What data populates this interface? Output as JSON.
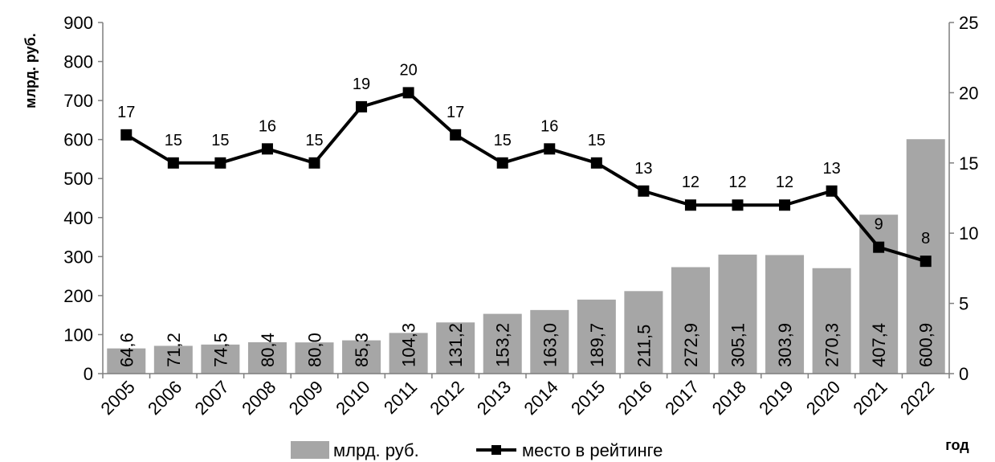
{
  "chart_data": {
    "type": "bar",
    "categories": [
      "2005",
      "2006",
      "2007",
      "2008",
      "2009",
      "2010",
      "2011",
      "2012",
      "2013",
      "2014",
      "2015",
      "2016",
      "2017",
      "2018",
      "2019",
      "2020",
      "2021",
      "2022"
    ],
    "series": [
      {
        "name": "млрд. руб.",
        "type": "bar",
        "axis": "left",
        "color": "#a6a6a6",
        "values": [
          64.6,
          71.2,
          74.5,
          80.4,
          80.0,
          85.3,
          104.3,
          131.2,
          153.2,
          163.0,
          189.7,
          211.5,
          272.9,
          305.1,
          303.9,
          270.3,
          407.4,
          600.9
        ],
        "labels": [
          "64,6",
          "71,2",
          "74,5",
          "80,4",
          "80,0",
          "85,3",
          "104,3",
          "131,2",
          "153,2",
          "163,0",
          "189,7",
          "211,5",
          "272,9",
          "305,1",
          "303,9",
          "270,3",
          "407,4",
          "600,9"
        ]
      },
      {
        "name": "место в рейтинге",
        "type": "line",
        "axis": "right",
        "color": "#000000",
        "marker": "square",
        "values": [
          17,
          15,
          15,
          16,
          15,
          19,
          20,
          17,
          15,
          16,
          15,
          13,
          12,
          12,
          12,
          13,
          9,
          8
        ],
        "labels": [
          "17",
          "15",
          "15",
          "16",
          "15",
          "19",
          "20",
          "17",
          "15",
          "16",
          "15",
          "13",
          "12",
          "12",
          "12",
          "13",
          "9",
          "8"
        ]
      }
    ],
    "xlabel": "год",
    "ylabel": "млрд. руб.",
    "ylim": [
      0,
      900
    ],
    "y2lim": [
      0,
      25
    ],
    "yticks": [
      "0",
      "100",
      "200",
      "300",
      "400",
      "500",
      "600",
      "700",
      "800",
      "900"
    ],
    "y2ticks": [
      "0",
      "5",
      "10",
      "15",
      "20",
      "25"
    ],
    "grid": false,
    "legend_position": "bottom"
  }
}
